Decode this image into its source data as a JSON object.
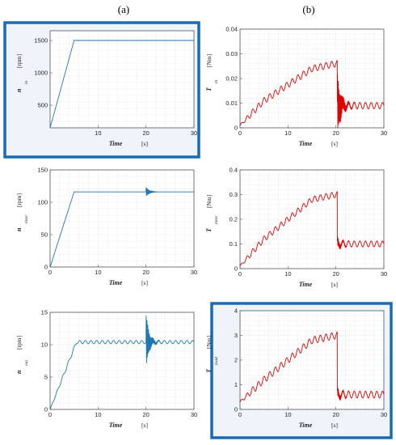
{
  "column_labels": [
    "(a)",
    "(b)"
  ],
  "colors": {
    "blue_series": "#1f77b4",
    "red_series": "#e00000",
    "highlight_border": "#1a6bb5",
    "highlight_fill": "#eef4fa"
  },
  "chart_data": [
    {
      "type": "line",
      "column": "a",
      "row": 1,
      "highlighted": true,
      "xlabel": "Time",
      "xunit": "[s]",
      "ylabel_main": "n",
      "ylabel_sub": "in",
      "yunit": "[rpm]",
      "xlim": [
        0,
        30
      ],
      "ylim": [
        150,
        1650
      ],
      "xticks": [
        "10",
        "20",
        "30"
      ],
      "yticks": [
        "500",
        "1000",
        "1500"
      ],
      "ytick_values": [
        500,
        1000,
        1500
      ],
      "xtick_values": [
        10,
        20,
        30
      ],
      "grid": true,
      "series": [
        {
          "color": "#1f77b4",
          "x": [
            0,
            5,
            30
          ],
          "y": [
            150,
            1500,
            1500
          ]
        }
      ]
    },
    {
      "type": "line",
      "column": "a",
      "row": 2,
      "highlighted": false,
      "xlabel": "Time",
      "xunit": "[s]",
      "ylabel_main": "n",
      "ylabel_sub": "inter",
      "yunit": "[rpm]",
      "xlim": [
        0,
        30
      ],
      "ylim": [
        0,
        150
      ],
      "xticks": [
        "0",
        "10",
        "20",
        "30"
      ],
      "yticks": [
        "0",
        "50",
        "100",
        "150"
      ],
      "ytick_values": [
        0,
        50,
        100,
        150
      ],
      "xtick_values": [
        0,
        10,
        20,
        30
      ],
      "grid": true,
      "series": [
        {
          "color": "#1f77b4",
          "x": [
            0,
            5,
            20,
            30
          ],
          "y": [
            0,
            116,
            116,
            116
          ],
          "transient_at": 20,
          "transient_amp": 8
        }
      ]
    },
    {
      "type": "line",
      "column": "a",
      "row": 3,
      "highlighted": false,
      "xlabel": "Time",
      "xunit": "[s]",
      "ylabel_main": "n",
      "ylabel_sub": "out",
      "yunit": "[rpm]",
      "xlim": [
        0,
        30
      ],
      "ylim": [
        0,
        15
      ],
      "xticks": [
        "0",
        "10",
        "20",
        "30"
      ],
      "yticks": [
        "0",
        "5",
        "10",
        "15"
      ],
      "ytick_values": [
        0,
        5,
        10,
        15
      ],
      "xtick_values": [
        0,
        10,
        20,
        30
      ],
      "grid": true,
      "series": [
        {
          "color": "#1f77b4",
          "x": [
            0,
            5.5,
            30
          ],
          "y": [
            0,
            10.4,
            10.4
          ],
          "ripple": 0.25,
          "transient_at": 20,
          "transient_amp": 4.5
        }
      ]
    },
    {
      "type": "line",
      "column": "b",
      "row": 1,
      "highlighted": false,
      "xlabel": "Time",
      "xunit": "[s]",
      "ylabel_main": "T",
      "ylabel_sub": "in",
      "yunit": "[Nm]",
      "xlim": [
        0,
        30
      ],
      "ylim": [
        0,
        0.04
      ],
      "xticks": [
        "0",
        "10",
        "20",
        "30"
      ],
      "yticks": [
        "0",
        "0.01",
        "0.02",
        "0.03",
        "0.04"
      ],
      "ytick_values": [
        0,
        0.01,
        0.02,
        0.03,
        0.04
      ],
      "xtick_values": [
        0,
        10,
        20,
        30
      ],
      "grid": true,
      "series": [
        {
          "color": "#e00000",
          "x": [
            0,
            5,
            15,
            20,
            30
          ],
          "y": [
            0.001,
            0.011,
            0.024,
            0.026,
            0.009
          ],
          "ripple": 0.0013,
          "drop_at": 20.3,
          "after": 0.009,
          "transient_amp": 0.012
        }
      ]
    },
    {
      "type": "line",
      "column": "b",
      "row": 2,
      "highlighted": false,
      "xlabel": "Time",
      "xunit": "[s]",
      "ylabel_main": "T",
      "ylabel_sub": "inter",
      "yunit": "[Nm]",
      "xlim": [
        0,
        30
      ],
      "ylim": [
        0,
        0.4
      ],
      "xticks": [
        "0",
        "10",
        "20",
        "30"
      ],
      "yticks": [
        "0",
        "0.1",
        "0.2",
        "0.3",
        "0.4"
      ],
      "ytick_values": [
        0,
        0.1,
        0.2,
        0.3,
        0.4
      ],
      "xtick_values": [
        0,
        10,
        20,
        30
      ],
      "grid": true,
      "series": [
        {
          "color": "#e00000",
          "x": [
            0,
            5,
            15,
            20,
            30
          ],
          "y": [
            0.01,
            0.12,
            0.28,
            0.3,
            0.1
          ],
          "ripple": 0.012,
          "drop_at": 20.3,
          "after": 0.1,
          "transient_amp": 0.02
        }
      ]
    },
    {
      "type": "line",
      "column": "b",
      "row": 3,
      "highlighted": true,
      "xlabel": "Time",
      "xunit": "[s]",
      "ylabel_main": "T",
      "ylabel_sub": "load",
      "yunit": "[Nm]",
      "xlim": [
        0,
        30
      ],
      "ylim": [
        0,
        4
      ],
      "xticks": [
        "0",
        "10",
        "20",
        "30"
      ],
      "yticks": [
        "0",
        "1",
        "2",
        "3",
        "4"
      ],
      "ytick_values": [
        0,
        1,
        2,
        3,
        4
      ],
      "xtick_values": [
        0,
        10,
        20,
        30
      ],
      "grid": true,
      "series": [
        {
          "color": "#e00000",
          "x": [
            0,
            5,
            15,
            20,
            30
          ],
          "y": [
            0.3,
            1.2,
            2.8,
            3.0,
            0.6
          ],
          "ripple": 0.14,
          "drop_at": 20.3,
          "after": 0.6,
          "transient_amp": 0.2
        }
      ]
    }
  ]
}
